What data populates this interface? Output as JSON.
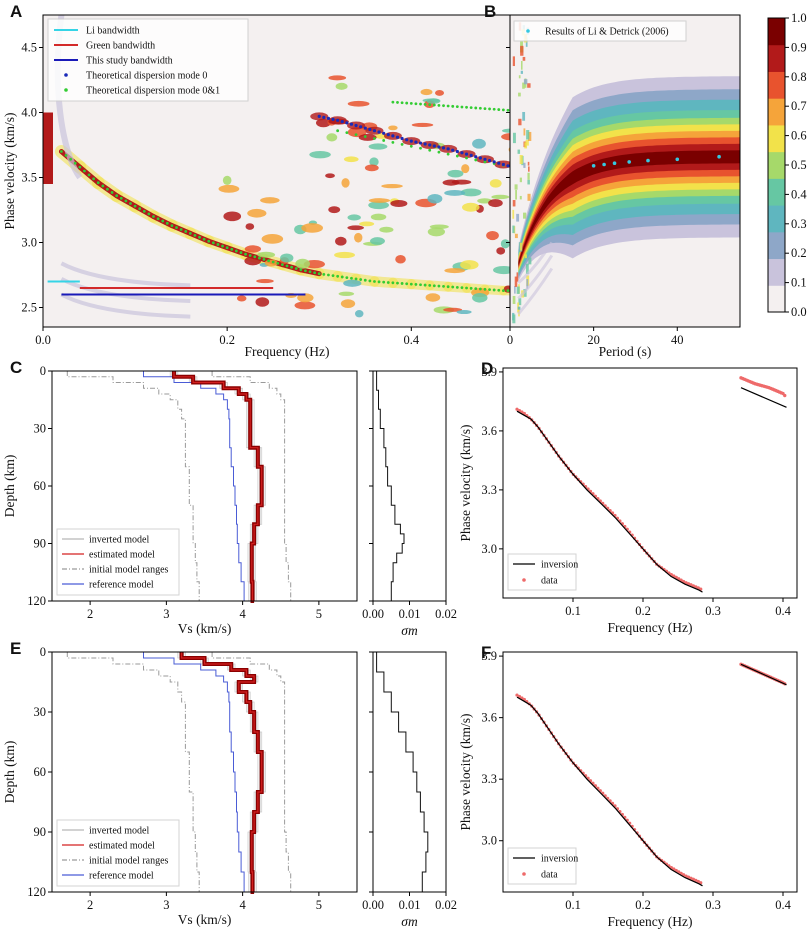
{
  "colors": {
    "li": "#35d4e6",
    "green": "#d32a2a",
    "study": "#1a1ab8",
    "mode0": "#1a2ab8",
    "mode01": "#33cc33",
    "inverted": "#b8b8b8",
    "estimated": "#8b0000",
    "estimated_edge": "#d32020",
    "ranges": "#9a9a9a",
    "reference": "#4a5cd6",
    "sigma": "#111111",
    "inversion": "#000000",
    "data": "#ee6a6a",
    "li_detrick": "#35c8e0"
  },
  "colormap": [
    "#f4f0f0",
    "#c9c3dc",
    "#8ea7c8",
    "#5fb6bf",
    "#66c7a3",
    "#a6d96a",
    "#f2e24a",
    "#f5a43a",
    "#e8532e",
    "#b21a1a",
    "#7a0000"
  ],
  "chart_data": [
    {
      "id": "A",
      "type": "heatmap",
      "panel_label": "A",
      "xlabel": "Frequency (Hz)",
      "ylabel": "Phase velocity (km/s)",
      "xlim": [
        0,
        0.53
      ],
      "ylim": [
        2.35,
        4.75
      ],
      "xticks": [
        "0.0",
        "0.2",
        "0.4"
      ],
      "xtick_values": [
        0,
        0.2,
        0.4
      ],
      "yticks": [
        "2.5",
        "3.0",
        "3.5",
        "4.0",
        "4.5"
      ],
      "ytick_values": [
        2.5,
        3.0,
        3.5,
        4.0,
        4.5
      ],
      "legend": [
        "Li bandwidth",
        "Green bandwidth",
        "This study bandwidth",
        "Theoretical dispersion mode 0",
        "Theoretical dispersion mode 0&1"
      ],
      "bandwidths": [
        {
          "name": "Li bandwidth",
          "x": [
            0.005,
            0.04
          ],
          "y": 2.7
        },
        {
          "name": "Green bandwidth",
          "x": [
            0.04,
            0.25
          ],
          "y": 2.65
        },
        {
          "name": "This study bandwidth",
          "x": [
            0.02,
            0.285
          ],
          "y": 2.6
        }
      ],
      "mode0": {
        "x": [
          0.3,
          0.32,
          0.34,
          0.36,
          0.38,
          0.4,
          0.42,
          0.44,
          0.46,
          0.48,
          0.5,
          0.52,
          0.53
        ],
        "y": [
          3.97,
          3.94,
          3.9,
          3.86,
          3.82,
          3.78,
          3.75,
          3.72,
          3.68,
          3.64,
          3.6,
          3.56,
          3.53
        ]
      },
      "mode01": {
        "x": [
          0.02,
          0.04,
          0.06,
          0.08,
          0.1,
          0.12,
          0.14,
          0.16,
          0.18,
          0.2,
          0.22,
          0.24,
          0.26,
          0.28,
          0.3,
          0.32,
          0.34,
          0.36,
          0.38,
          0.4,
          0.42,
          0.44,
          0.46,
          0.48,
          0.5,
          0.52,
          0.53
        ],
        "y": [
          3.7,
          3.58,
          3.46,
          3.36,
          3.28,
          3.2,
          3.13,
          3.07,
          3.01,
          2.96,
          2.91,
          2.87,
          2.83,
          2.79,
          2.76,
          2.74,
          2.72,
          2.7,
          2.69,
          2.68,
          2.67,
          2.66,
          2.65,
          2.64,
          2.63,
          2.63,
          2.62
        ]
      },
      "mode01_upper": {
        "x": [
          0.32,
          0.36,
          0.4,
          0.44,
          0.48,
          0.52
        ],
        "y": [
          3.86,
          3.8,
          3.74,
          3.68,
          3.62,
          3.57
        ]
      },
      "mode01_top": {
        "x": [
          0.38,
          0.4,
          0.42,
          0.44,
          0.46,
          0.48,
          0.5,
          0.52,
          0.53
        ],
        "y": [
          4.08,
          4.07,
          4.06,
          4.05,
          4.04,
          4.03,
          4.02,
          4.01,
          4.0
        ]
      }
    },
    {
      "id": "B",
      "type": "heatmap",
      "panel_label": "B",
      "xlabel": "Period (s)",
      "xlim": [
        0,
        55
      ],
      "ylim": [
        2.35,
        4.75
      ],
      "xticks": [
        "0",
        "20",
        "40"
      ],
      "xtick_values": [
        0,
        20,
        40
      ],
      "legend": [
        "Results of Li & Detrick (2006)"
      ],
      "li_detrick": {
        "x": [
          20,
          22.5,
          25,
          28.5,
          33,
          40,
          50
        ],
        "y": [
          3.59,
          3.6,
          3.61,
          3.62,
          3.63,
          3.64,
          3.66
        ]
      },
      "colorbar": {
        "ticks": [
          "0.0",
          "0.1",
          "0.2",
          "0.3",
          "0.4",
          "0.5",
          "0.6",
          "0.7",
          "0.8",
          "0.9",
          "1.0"
        ],
        "range": [
          0,
          1
        ]
      }
    },
    {
      "id": "C",
      "type": "line",
      "panel_label": "C",
      "xlabel": "Vs (km/s)",
      "ylabel": "Depth (km)",
      "xlim": [
        1.5,
        5.5
      ],
      "ylim": [
        120,
        0
      ],
      "xticks": [
        "2",
        "3",
        "4",
        "5"
      ],
      "xtick_values": [
        2,
        3,
        4,
        5
      ],
      "yticks": [
        "0",
        "30",
        "60",
        "90",
        "120"
      ],
      "ytick_values": [
        0,
        30,
        60,
        90,
        120
      ],
      "legend": [
        "inverted model",
        "estimated model",
        "initial model ranges",
        "reference model"
      ],
      "depth": [
        0,
        3,
        6,
        9,
        12,
        15,
        20,
        25,
        30,
        40,
        50,
        60,
        70,
        80,
        90,
        100,
        110,
        120
      ],
      "estimated": [
        3.1,
        3.35,
        3.75,
        3.95,
        4.05,
        4.1,
        4.1,
        4.1,
        4.1,
        4.2,
        4.25,
        4.25,
        4.2,
        4.15,
        4.12,
        4.12,
        4.13,
        4.15
      ],
      "reference": [
        2.7,
        3.1,
        3.45,
        3.65,
        3.75,
        3.8,
        3.82,
        3.83,
        3.83,
        3.85,
        3.88,
        3.9,
        3.92,
        3.93,
        3.95,
        3.98,
        4.02,
        4.05
      ],
      "range_low": [
        1.7,
        2.3,
        2.7,
        2.9,
        3.05,
        3.15,
        3.2,
        3.25,
        3.25,
        3.25,
        3.3,
        3.3,
        3.35,
        3.35,
        3.38,
        3.4,
        3.43,
        3.45
      ],
      "range_high": [
        3.6,
        4.1,
        4.35,
        4.45,
        4.5,
        4.55,
        4.55,
        4.55,
        4.55,
        4.55,
        4.55,
        4.55,
        4.55,
        4.55,
        4.57,
        4.6,
        4.63,
        4.65
      ],
      "sigma_label": "σm",
      "sigma_xlim": [
        0,
        0.02
      ],
      "sigma_xticks": [
        "0.00",
        "0.01",
        "0.02"
      ],
      "sigma_xtick_values": [
        0,
        0.01,
        0.02
      ],
      "sigma_depth": [
        0,
        10,
        20,
        30,
        40,
        50,
        60,
        70,
        80,
        85,
        90,
        95,
        100,
        110,
        120
      ],
      "sigma": [
        0.001,
        0.0015,
        0.002,
        0.003,
        0.0035,
        0.004,
        0.005,
        0.006,
        0.0075,
        0.0085,
        0.008,
        0.0065,
        0.0055,
        0.005,
        0.0055
      ]
    },
    {
      "id": "D",
      "type": "line",
      "panel_label": "D",
      "xlabel": "Frequency (Hz)",
      "ylabel": "Phase velocity (km/s)",
      "xlim": [
        0.0,
        0.42
      ],
      "ylim": [
        2.75,
        3.92
      ],
      "xticks": [
        "0.1",
        "0.2",
        "0.3",
        "0.4"
      ],
      "xtick_values": [
        0.1,
        0.2,
        0.3,
        0.4
      ],
      "yticks": [
        "3.0",
        "3.3",
        "3.6",
        "3.9"
      ],
      "ytick_values": [
        3.0,
        3.3,
        3.6,
        3.9
      ],
      "legend": [
        "inversion",
        "data"
      ],
      "inversion": {
        "x": [
          0.02,
          0.03,
          0.04,
          0.05,
          0.06,
          0.08,
          0.1,
          0.12,
          0.14,
          0.16,
          0.18,
          0.2,
          0.22,
          0.24,
          0.26,
          0.28,
          0.285
        ],
        "y": [
          3.7,
          3.68,
          3.66,
          3.62,
          3.57,
          3.47,
          3.38,
          3.3,
          3.23,
          3.16,
          3.08,
          3.0,
          2.92,
          2.86,
          2.82,
          2.79,
          2.78
        ]
      },
      "data": {
        "x": [
          0.02,
          0.03,
          0.04,
          0.05,
          0.06,
          0.08,
          0.1,
          0.12,
          0.14,
          0.16,
          0.18,
          0.2,
          0.22,
          0.24,
          0.26,
          0.28,
          0.285
        ],
        "y": [
          3.71,
          3.69,
          3.66,
          3.62,
          3.57,
          3.47,
          3.38,
          3.31,
          3.24,
          3.17,
          3.09,
          3.0,
          2.92,
          2.87,
          2.83,
          2.8,
          2.79
        ]
      },
      "inversion_high": {
        "x": [
          0.34,
          0.405
        ],
        "y": [
          3.82,
          3.72
        ]
      },
      "data_high": {
        "x": [
          0.34,
          0.36,
          0.38,
          0.4,
          0.405
        ],
        "y": [
          3.87,
          3.84,
          3.82,
          3.79,
          3.77
        ]
      }
    },
    {
      "id": "E",
      "type": "line",
      "panel_label": "E",
      "xlabel": "Vs (km/s)",
      "ylabel": "Depth (km)",
      "xlim": [
        1.5,
        5.5
      ],
      "ylim": [
        120,
        0
      ],
      "xticks": [
        "2",
        "3",
        "4",
        "5"
      ],
      "xtick_values": [
        2,
        3,
        4,
        5
      ],
      "yticks": [
        "0",
        "30",
        "60",
        "90",
        "120"
      ],
      "ytick_values": [
        0,
        30,
        60,
        90,
        120
      ],
      "legend": [
        "inverted model",
        "estimated model",
        "initial model ranges",
        "reference model"
      ],
      "depth": [
        0,
        3,
        6,
        9,
        12,
        15,
        20,
        25,
        30,
        40,
        50,
        60,
        70,
        80,
        90,
        100,
        110,
        120
      ],
      "estimated": [
        3.2,
        3.5,
        3.85,
        4.05,
        4.15,
        3.95,
        4.05,
        4.1,
        4.15,
        4.2,
        4.25,
        4.25,
        4.2,
        4.15,
        4.12,
        4.12,
        4.13,
        4.15
      ],
      "reference": [
        2.7,
        3.1,
        3.45,
        3.65,
        3.75,
        3.8,
        3.82,
        3.83,
        3.83,
        3.85,
        3.88,
        3.9,
        3.92,
        3.93,
        3.95,
        3.98,
        4.02,
        4.05
      ],
      "range_low": [
        1.7,
        2.3,
        2.7,
        2.9,
        3.05,
        3.15,
        3.2,
        3.25,
        3.25,
        3.25,
        3.3,
        3.3,
        3.35,
        3.35,
        3.38,
        3.4,
        3.43,
        3.45
      ],
      "range_high": [
        3.6,
        4.1,
        4.35,
        4.45,
        4.5,
        4.55,
        4.55,
        4.55,
        4.55,
        4.55,
        4.55,
        4.55,
        4.55,
        4.55,
        4.57,
        4.6,
        4.63,
        4.65
      ],
      "sigma_label": "σm",
      "sigma_xlim": [
        0,
        0.02
      ],
      "sigma_xticks": [
        "0.00",
        "0.01",
        "0.02"
      ],
      "sigma_xtick_values": [
        0,
        0.01,
        0.02
      ],
      "sigma_depth": [
        0,
        10,
        20,
        30,
        40,
        50,
        60,
        70,
        80,
        90,
        100,
        110,
        120
      ],
      "sigma": [
        0.001,
        0.003,
        0.005,
        0.007,
        0.009,
        0.011,
        0.012,
        0.013,
        0.014,
        0.015,
        0.0145,
        0.0135,
        0.015
      ]
    },
    {
      "id": "F",
      "type": "line",
      "panel_label": "F",
      "xlabel": "Frequency (Hz)",
      "ylabel": "Phase velocity (km/s)",
      "xlim": [
        0.0,
        0.42
      ],
      "ylim": [
        2.75,
        3.92
      ],
      "xticks": [
        "0.1",
        "0.2",
        "0.3",
        "0.4"
      ],
      "xtick_values": [
        0.1,
        0.2,
        0.3,
        0.4
      ],
      "yticks": [
        "3.0",
        "3.3",
        "3.6",
        "3.9"
      ],
      "ytick_values": [
        3.0,
        3.3,
        3.6,
        3.9
      ],
      "legend": [
        "inversion",
        "data"
      ],
      "inversion": {
        "x": [
          0.02,
          0.03,
          0.04,
          0.05,
          0.06,
          0.08,
          0.1,
          0.12,
          0.14,
          0.16,
          0.18,
          0.2,
          0.22,
          0.24,
          0.26,
          0.28,
          0.285
        ],
        "y": [
          3.7,
          3.68,
          3.66,
          3.62,
          3.57,
          3.47,
          3.38,
          3.3,
          3.23,
          3.16,
          3.08,
          3.0,
          2.92,
          2.86,
          2.82,
          2.79,
          2.78
        ]
      },
      "data": {
        "x": [
          0.02,
          0.03,
          0.04,
          0.05,
          0.06,
          0.08,
          0.1,
          0.12,
          0.14,
          0.16,
          0.18,
          0.2,
          0.22,
          0.24,
          0.26,
          0.28,
          0.285
        ],
        "y": [
          3.71,
          3.69,
          3.66,
          3.62,
          3.57,
          3.47,
          3.38,
          3.31,
          3.24,
          3.17,
          3.09,
          3.0,
          2.92,
          2.87,
          2.83,
          2.8,
          2.79
        ]
      },
      "inversion_high": {
        "x": [
          0.34,
          0.405
        ],
        "y": [
          3.86,
          3.76
        ]
      },
      "data_high": {
        "x": [
          0.34,
          0.36,
          0.38,
          0.4,
          0.405
        ],
        "y": [
          3.86,
          3.83,
          3.8,
          3.77,
          3.76
        ]
      }
    }
  ]
}
